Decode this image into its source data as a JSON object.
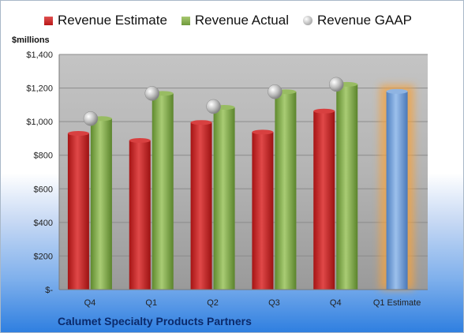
{
  "chart_data": {
    "type": "bar",
    "categories": [
      "Q4",
      "Q1",
      "Q2",
      "Q3",
      "Q4",
      "Q1 Estimate"
    ],
    "series": [
      {
        "name": "Revenue Estimate",
        "values": [
          930,
          888,
          995,
          938,
          1063,
          null
        ],
        "color": "#c62828"
      },
      {
        "name": "Revenue Actual",
        "values": [
          1018,
          1168,
          1085,
          1178,
          1222,
          null
        ],
        "color": "#7ea44a"
      },
      {
        "name": "Revenue GAAP",
        "values": [
          1018,
          1168,
          1090,
          1178,
          1222,
          null
        ],
        "color": "#c0c0c0",
        "style": "marker"
      },
      {
        "name": "Q1 Estimate",
        "values": [
          null,
          null,
          null,
          null,
          null,
          1180
        ],
        "color": "#6f9fd8",
        "highlight": "#f5a23c"
      }
    ],
    "ylabel": "$millions",
    "ylim": [
      0,
      1400
    ],
    "yticks": [
      "$-",
      "$200",
      "$400",
      "$600",
      "$800",
      "$1,000",
      "$1,200",
      "$1,400"
    ],
    "legend": "top",
    "grid": true
  },
  "legend_labels": [
    "Revenue Estimate",
    "Revenue Actual",
    "Revenue GAAP"
  ],
  "unit_label": "$millions",
  "company": "Calumet Specialty Products Partners"
}
